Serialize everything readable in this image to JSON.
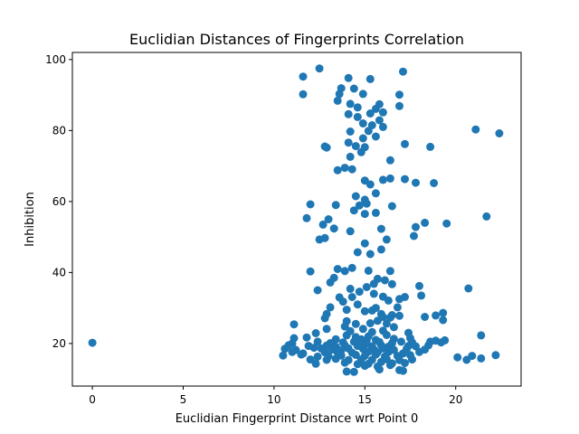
{
  "chart_data": {
    "type": "scatter",
    "title": "Euclidian Distances of Fingerprints Correlation",
    "xlabel": "Euclidian Fingerprint Distance wrt Point 0",
    "ylabel": "Inhibition",
    "xlim": [
      -1.1,
      23.6
    ],
    "ylim": [
      8.0,
      102.0
    ],
    "xticks": [
      0,
      5,
      10,
      15,
      20
    ],
    "yticks": [
      20,
      40,
      60,
      80,
      100
    ],
    "grid": false,
    "marker_color": "#1f77b4",
    "points": [
      [
        0.0,
        20.2
      ],
      [
        12.5,
        97.5
      ],
      [
        11.6,
        95.2
      ],
      [
        17.1,
        96.6
      ],
      [
        14.1,
        94.8
      ],
      [
        15.3,
        94.5
      ],
      [
        13.7,
        91.9
      ],
      [
        14.4,
        91.8
      ],
      [
        13.6,
        90.3
      ],
      [
        14.9,
        90.3
      ],
      [
        11.6,
        90.2
      ],
      [
        16.9,
        90.1
      ],
      [
        13.5,
        88.4
      ],
      [
        14.2,
        87.5
      ],
      [
        15.8,
        87.4
      ],
      [
        14.6,
        86.5
      ],
      [
        15.6,
        86.1
      ],
      [
        16.0,
        85.1
      ],
      [
        14.1,
        84.6
      ],
      [
        15.3,
        84.8
      ],
      [
        16.9,
        86.9
      ],
      [
        14.6,
        83.8
      ],
      [
        15.8,
        82.9
      ],
      [
        14.9,
        82.0
      ],
      [
        15.4,
        81.5
      ],
      [
        16.0,
        81.0
      ],
      [
        14.2,
        79.7
      ],
      [
        15.2,
        79.9
      ],
      [
        15.6,
        78.3
      ],
      [
        21.1,
        80.3
      ],
      [
        22.4,
        79.2
      ],
      [
        14.9,
        77.8
      ],
      [
        14.1,
        76.6
      ],
      [
        12.8,
        75.5
      ],
      [
        12.9,
        75.2
      ],
      [
        14.5,
        75.6
      ],
      [
        15.0,
        75.3
      ],
      [
        14.8,
        73.9
      ],
      [
        17.2,
        76.2
      ],
      [
        18.6,
        75.4
      ],
      [
        14.2,
        72.6
      ],
      [
        16.4,
        71.6
      ],
      [
        13.5,
        68.8
      ],
      [
        13.9,
        69.5
      ],
      [
        14.3,
        69.1
      ],
      [
        15.0,
        65.9
      ],
      [
        15.3,
        64.8
      ],
      [
        16.0,
        66.1
      ],
      [
        16.4,
        66.5
      ],
      [
        17.2,
        66.3
      ],
      [
        17.8,
        65.3
      ],
      [
        18.8,
        65.2
      ],
      [
        15.6,
        62.3
      ],
      [
        14.5,
        61.5
      ],
      [
        15.0,
        60.5
      ],
      [
        12.0,
        59.2
      ],
      [
        13.4,
        59.0
      ],
      [
        14.7,
        58.9
      ],
      [
        15.1,
        59.4
      ],
      [
        16.5,
        58.7
      ],
      [
        14.4,
        57.5
      ],
      [
        15.0,
        56.5
      ],
      [
        15.6,
        56.8
      ],
      [
        21.7,
        55.8
      ],
      [
        11.8,
        55.3
      ],
      [
        13.0,
        55.0
      ],
      [
        12.7,
        53.5
      ],
      [
        17.8,
        52.8
      ],
      [
        18.3,
        54.0
      ],
      [
        19.5,
        53.8
      ],
      [
        13.3,
        52.4
      ],
      [
        14.2,
        51.6
      ],
      [
        15.9,
        52.3
      ],
      [
        17.7,
        50.3
      ],
      [
        12.5,
        49.3
      ],
      [
        12.8,
        49.7
      ],
      [
        15.0,
        48.2
      ],
      [
        16.2,
        49.3
      ],
      [
        15.9,
        46.5
      ],
      [
        14.6,
        45.7
      ],
      [
        15.3,
        45.2
      ],
      [
        12.0,
        40.3
      ],
      [
        13.5,
        41.0
      ],
      [
        13.9,
        40.4
      ],
      [
        14.3,
        41.3
      ],
      [
        15.2,
        40.5
      ],
      [
        16.4,
        40.4
      ],
      [
        13.3,
        38.5
      ],
      [
        15.7,
        38.2
      ],
      [
        16.1,
        37.8
      ],
      [
        13.1,
        37.2
      ],
      [
        15.5,
        36.8
      ],
      [
        16.5,
        36.7
      ],
      [
        18.0,
        36.2
      ],
      [
        20.7,
        35.5
      ],
      [
        12.4,
        35.0
      ],
      [
        14.2,
        35.4
      ],
      [
        15.1,
        35.9
      ],
      [
        14.7,
        34.6
      ],
      [
        15.5,
        34.0
      ],
      [
        16.0,
        33.2
      ],
      [
        17.2,
        33.1
      ],
      [
        18.1,
        33.5
      ],
      [
        13.6,
        33.0
      ],
      [
        14.3,
        33.1
      ],
      [
        16.3,
        32.1
      ],
      [
        16.9,
        32.5
      ],
      [
        13.8,
        31.8
      ],
      [
        14.6,
        31.0
      ],
      [
        13.1,
        30.2
      ],
      [
        15.6,
        30.0
      ],
      [
        16.8,
        30.2
      ],
      [
        14.0,
        29.5
      ],
      [
        15.0,
        29.1
      ],
      [
        15.4,
        29.3
      ],
      [
        15.9,
        28.3
      ],
      [
        16.5,
        28.0
      ],
      [
        16.0,
        27.5
      ],
      [
        16.4,
        27.3
      ],
      [
        16.9,
        27.8
      ],
      [
        18.3,
        27.5
      ],
      [
        18.9,
        27.9
      ],
      [
        19.3,
        28.6
      ],
      [
        19.3,
        26.6
      ],
      [
        12.8,
        27.1
      ],
      [
        12.9,
        28.3
      ],
      [
        14.0,
        26.3
      ],
      [
        14.5,
        25.5
      ],
      [
        15.3,
        25.7
      ],
      [
        15.7,
        26.4
      ],
      [
        16.2,
        25.6
      ],
      [
        11.1,
        25.4
      ],
      [
        13.9,
        24.8
      ],
      [
        14.9,
        24.1
      ],
      [
        16.6,
        24.6
      ],
      [
        12.9,
        24.1
      ],
      [
        14.2,
        23.5
      ],
      [
        15.4,
        23.2
      ],
      [
        16.0,
        23.6
      ],
      [
        17.4,
        23.0
      ],
      [
        12.3,
        22.9
      ],
      [
        14.0,
        22.3
      ],
      [
        14.5,
        21.8
      ],
      [
        15.2,
        22.0
      ],
      [
        16.2,
        22.4
      ],
      [
        17.5,
        21.5
      ],
      [
        21.4,
        22.3
      ],
      [
        11.1,
        21.5
      ],
      [
        11.8,
        21.7
      ],
      [
        13.4,
        21.2
      ],
      [
        14.8,
        21.2
      ],
      [
        15.6,
        21.0
      ],
      [
        16.6,
        21.3
      ],
      [
        11.0,
        20.0
      ],
      [
        12.4,
        20.5
      ],
      [
        13.1,
        20.1
      ],
      [
        13.8,
        20.3
      ],
      [
        14.4,
        20.5
      ],
      [
        15.1,
        20.8
      ],
      [
        15.8,
        20.4
      ],
      [
        16.5,
        20.1
      ],
      [
        17.0,
        20.5
      ],
      [
        17.6,
        20.3
      ],
      [
        18.6,
        20.5
      ],
      [
        19.2,
        20.3
      ],
      [
        18.9,
        20.8
      ],
      [
        19.4,
        20.9
      ],
      [
        10.8,
        19.5
      ],
      [
        11.9,
        19.3
      ],
      [
        12.2,
        18.8
      ],
      [
        12.9,
        19.4
      ],
      [
        13.4,
        19.1
      ],
      [
        13.9,
        19.5
      ],
      [
        14.6,
        19.3
      ],
      [
        15.0,
        19.7
      ],
      [
        15.4,
        19.2
      ],
      [
        15.9,
        19.5
      ],
      [
        16.3,
        19.1
      ],
      [
        17.4,
        19.3
      ],
      [
        17.8,
        19.2
      ],
      [
        18.5,
        19.5
      ],
      [
        10.6,
        18.5
      ],
      [
        11.2,
        18.2
      ],
      [
        12.6,
        18.6
      ],
      [
        13.2,
        18.3
      ],
      [
        13.7,
        18.1
      ],
      [
        14.1,
        18.6
      ],
      [
        14.9,
        18.5
      ],
      [
        15.5,
        18.3
      ],
      [
        16.0,
        18.6
      ],
      [
        16.6,
        18.2
      ],
      [
        17.3,
        18.5
      ],
      [
        18.3,
        18.3
      ],
      [
        11.0,
        17.6
      ],
      [
        11.6,
        17.2
      ],
      [
        12.8,
        17.5
      ],
      [
        13.5,
        17.5
      ],
      [
        14.3,
        17.4
      ],
      [
        15.2,
        17.7
      ],
      [
        15.7,
        17.5
      ],
      [
        16.3,
        17.6
      ],
      [
        17.1,
        17.2
      ],
      [
        18.0,
        17.6
      ],
      [
        10.5,
        16.6
      ],
      [
        11.5,
        16.9
      ],
      [
        12.4,
        16.3
      ],
      [
        13.0,
        16.4
      ],
      [
        13.7,
        16.6
      ],
      [
        14.5,
        16.8
      ],
      [
        15.0,
        16.5
      ],
      [
        15.6,
        16.9
      ],
      [
        16.1,
        16.3
      ],
      [
        16.8,
        16.5
      ],
      [
        17.5,
        16.7
      ],
      [
        20.1,
        16.1
      ],
      [
        20.9,
        16.5
      ],
      [
        21.4,
        15.8
      ],
      [
        22.2,
        16.7
      ],
      [
        12.0,
        15.5
      ],
      [
        12.9,
        15.4
      ],
      [
        13.4,
        15.7
      ],
      [
        14.1,
        15.3
      ],
      [
        14.8,
        15.5
      ],
      [
        15.4,
        15.4
      ],
      [
        16.2,
        15.6
      ],
      [
        16.9,
        15.3
      ],
      [
        17.6,
        15.5
      ],
      [
        20.6,
        15.4
      ],
      [
        12.3,
        14.3
      ],
      [
        13.9,
        14.6
      ],
      [
        14.6,
        14.2
      ],
      [
        15.2,
        14.3
      ],
      [
        15.9,
        14.8
      ],
      [
        16.5,
        14.4
      ],
      [
        17.2,
        14.5
      ],
      [
        15.0,
        13.7
      ],
      [
        15.7,
        13.5
      ],
      [
        16.4,
        13.9
      ],
      [
        14.0,
        12.1
      ],
      [
        14.4,
        12.0
      ],
      [
        15.8,
        12.7
      ],
      [
        16.9,
        12.5
      ],
      [
        17.1,
        12.3
      ]
    ]
  }
}
